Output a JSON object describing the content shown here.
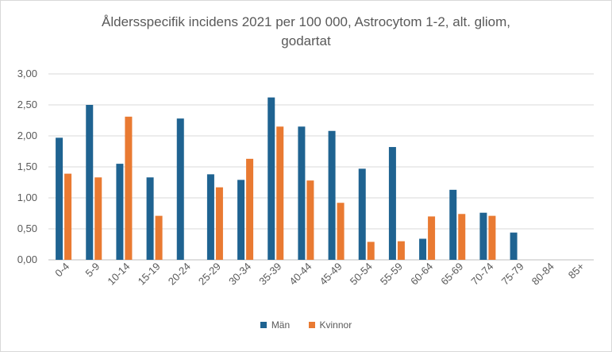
{
  "chart_data": {
    "type": "bar",
    "title_line1": "Åldersspecifik incidens 2021 per 100 000, Astrocytom 1-2, alt. gliom,",
    "title_line2": "godartat",
    "categories": [
      "0-4",
      "5-9",
      "10-14",
      "15-19",
      "20-24",
      "25-29",
      "30-34",
      "35-39",
      "40-44",
      "45-49",
      "50-54",
      "55-59",
      "60-64",
      "65-69",
      "70-74",
      "75-79",
      "80-84",
      "85+"
    ],
    "series": [
      {
        "name": "Män",
        "color": "#1f6391",
        "values": [
          1.97,
          2.5,
          1.55,
          1.33,
          2.28,
          1.38,
          1.29,
          2.62,
          2.15,
          2.08,
          1.47,
          1.82,
          0.34,
          1.13,
          0.76,
          0.44,
          0,
          0
        ]
      },
      {
        "name": "Kvinnor",
        "color": "#e97a32",
        "values": [
          1.39,
          1.33,
          2.31,
          0.71,
          0,
          1.17,
          1.63,
          2.15,
          1.28,
          0.92,
          0.29,
          0.3,
          0.7,
          0.74,
          0.71,
          0,
          0,
          0
        ]
      }
    ],
    "ylim": [
      0,
      3
    ],
    "yticks": [
      "0,00",
      "0,50",
      "1,00",
      "1,50",
      "2,00",
      "2,50",
      "3,00"
    ],
    "grid": true,
    "legend_position": "bottom"
  }
}
